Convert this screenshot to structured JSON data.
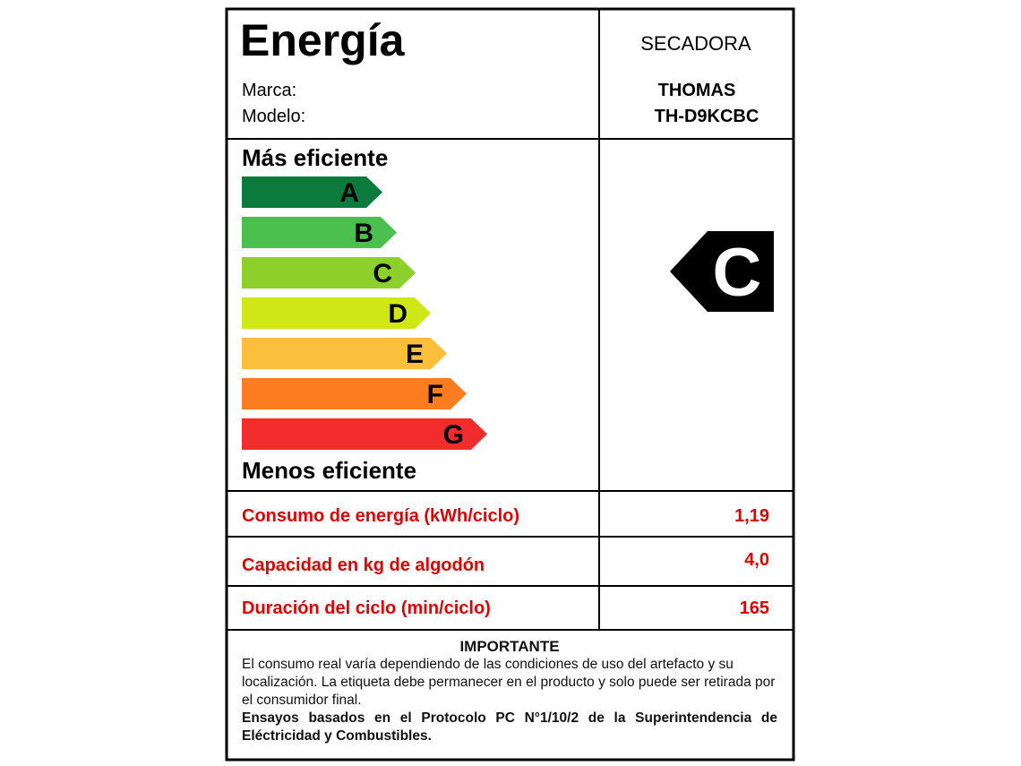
{
  "header": {
    "title": "Energía",
    "product": "SECADORA",
    "brand_label": "Marca:",
    "brand": "THOMAS",
    "model_label": "Modelo:",
    "model": "TH-D9KCBC"
  },
  "scale": {
    "top_label": "Más eficiente",
    "bottom_label": "Menos eficiente",
    "classes": [
      {
        "letter": "A",
        "color": "#0b7a3c"
      },
      {
        "letter": "B",
        "color": "#4cc04e"
      },
      {
        "letter": "C",
        "color": "#8dcf2b"
      },
      {
        "letter": "D",
        "color": "#cfe617"
      },
      {
        "letter": "E",
        "color": "#fcbf3b"
      },
      {
        "letter": "F",
        "color": "#fb7d1f"
      },
      {
        "letter": "G",
        "color": "#f22c2c"
      }
    ],
    "rating": "C"
  },
  "specs": [
    {
      "label": "Consumo de energía (kWh/ciclo)",
      "value": "1,19"
    },
    {
      "label": "Capacidad en kg de algodón",
      "value": "4,0"
    },
    {
      "label": "Duración del ciclo (min/ciclo)",
      "value": "165"
    }
  ],
  "notice": {
    "title": "IMPORTANTE",
    "text": "El consumo real varía dependiendo de las condiciones de uso del artefacto y su localización. La etiqueta debe permanecer en el producto y solo puede ser retirada por el consumidor final.",
    "bold_text": "Ensayos basados en el Protocolo PC N°1/10/2 de la Superintendencia de Eléctricidad y Combustibles."
  }
}
